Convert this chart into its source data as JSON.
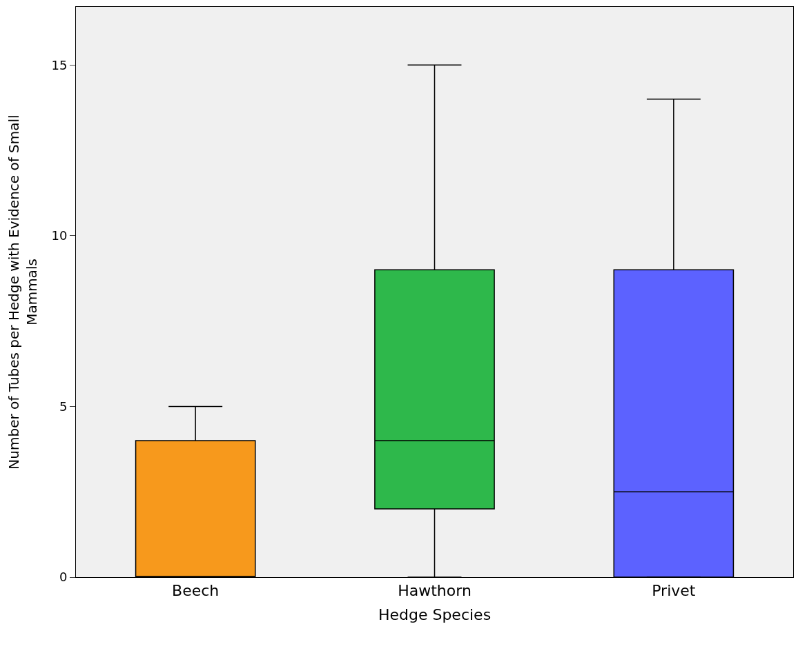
{
  "chart_data": {
    "type": "box",
    "xlabel": "Hedge Species",
    "ylabel": "Number of Tubes per Hedge with Evidence of Small Mammals",
    "categories": [
      "Beech",
      "Hawthorn",
      "Privet"
    ],
    "colors": [
      "#f7991c",
      "#2eb84b",
      "#5c62ff"
    ],
    "boxes": [
      {
        "low": 0,
        "q1": 0,
        "median": 0,
        "q3": 4,
        "high": 5
      },
      {
        "low": 0,
        "q1": 2,
        "median": 4,
        "q3": 9,
        "high": 15
      },
      {
        "low": 0,
        "q1": 0,
        "median": 2.5,
        "q3": 9,
        "high": 14
      }
    ],
    "ylim": [
      0,
      16.7
    ],
    "yticks": [
      0,
      5,
      10,
      15
    ],
    "grid": false,
    "legend": false
  }
}
